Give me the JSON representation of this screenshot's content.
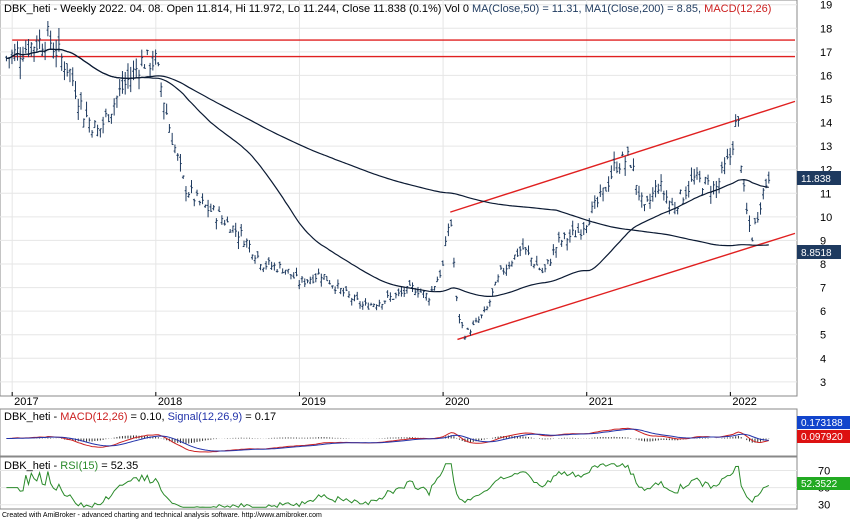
{
  "header": {
    "main": {
      "part1": "DBK_heti - Weekly 2022. 04. 08. Open 11.814, Hi 11.972, Lo 11.244, Close 11.838 (0.1%) Vol 0 ",
      "part2": "MA(Close,50) = 11.31, MA1(Close,200) = 8.85, ",
      "part3": "MACD(12,26)"
    },
    "macd": {
      "part1": "DBK_heti - ",
      "part2": "MACD(12,26)",
      "part3": " = 0.10, ",
      "part4": "Signal(12,26,9)",
      "part5": " = 0.17"
    },
    "rsi": {
      "part1": "DBK_heti - ",
      "part2": "RSI(15)",
      "part3": " = 52.35"
    }
  },
  "footer": "Created with AmiBroker - advanced charting and technical analysis software. http://www.amibroker.com",
  "badges": {
    "close": "11.838",
    "ma200": "8.8518",
    "macd_signal": "0.173188",
    "macd_value": "0.097920",
    "rsi": "52.3522"
  },
  "colors": {
    "price": "#1e3a5f",
    "ma": "#0b1a33",
    "trendline": "#e02020",
    "macd_line": "#cc2020",
    "signal_line": "#2233aa",
    "rsi_line": "#2a8a2a",
    "badge_dark": "#1e3a5f",
    "badge_red": "#dd1111",
    "badge_blue": "#1144cc",
    "badge_green": "#22aa22"
  },
  "chart_data": [
    {
      "type": "line",
      "name": "price-panel",
      "x_labels": [
        "2017",
        "2018",
        "2019",
        "2020",
        "2021",
        "2022"
      ],
      "ylim": [
        2.4,
        19.2
      ],
      "y_ticks": [
        3,
        4,
        5,
        6,
        7,
        8,
        9,
        10,
        11,
        12,
        13,
        14,
        15,
        16,
        17,
        18,
        19
      ],
      "grid": true,
      "series": [
        {
          "name": "DBK_heti",
          "style": "ohlc",
          "x": [
            2016.95,
            2017.1,
            2017.25,
            2017.4,
            2017.5,
            2017.6,
            2017.75,
            2017.9,
            2018.0,
            2018.1,
            2018.2,
            2018.3,
            2018.45,
            2018.6,
            2018.75,
            2018.9,
            2019.0,
            2019.15,
            2019.3,
            2019.45,
            2019.6,
            2019.7,
            2019.8,
            2019.9,
            2020.0,
            2020.05,
            2020.1,
            2020.15,
            2020.22,
            2020.3,
            2020.4,
            2020.55,
            2020.7,
            2020.8,
            2020.95,
            2021.1,
            2021.2,
            2021.3,
            2021.4,
            2021.5,
            2021.6,
            2021.75,
            2021.9,
            2022.0,
            2022.05,
            2022.1,
            2022.15,
            2022.22,
            2022.27
          ],
          "close": [
            16.7,
            17.2,
            17.6,
            16.2,
            14.4,
            13.6,
            15.3,
            16.6,
            16.6,
            13.7,
            11.3,
            10.6,
            10.0,
            9.2,
            8.0,
            7.8,
            7.2,
            7.6,
            6.8,
            6.2,
            6.5,
            6.7,
            7.0,
            6.6,
            7.9,
            10.2,
            6.0,
            5.0,
            5.4,
            6.0,
            7.6,
            8.7,
            7.6,
            8.9,
            9.4,
            10.8,
            12.2,
            12.5,
            10.2,
            11.4,
            10.4,
            11.6,
            11.2,
            12.6,
            14.3,
            10.6,
            9.1,
            10.9,
            11.84
          ]
        },
        {
          "name": "MA(Close,50)",
          "value": 11.31
        },
        {
          "name": "MA1(Close,200)",
          "value": 8.85
        }
      ],
      "trendlines": [
        {
          "from": [
            2017.0,
            17.5
          ],
          "to": [
            2022.45,
            17.5
          ]
        },
        {
          "from": [
            2017.0,
            16.8
          ],
          "to": [
            2022.45,
            16.8
          ]
        },
        {
          "from": [
            2020.05,
            10.2
          ],
          "to": [
            2022.45,
            14.9
          ]
        },
        {
          "from": [
            2020.1,
            4.8
          ],
          "to": [
            2022.45,
            9.3
          ]
        }
      ]
    },
    {
      "type": "line",
      "name": "macd-panel",
      "series": [
        {
          "name": "MACD(12,26)",
          "value": 0.1
        },
        {
          "name": "Signal(12,26,9)",
          "value": 0.17
        }
      ]
    },
    {
      "type": "line",
      "name": "rsi-panel",
      "y_ticks": [
        30,
        50,
        70
      ],
      "series": [
        {
          "name": "RSI(15)",
          "value": 52.35
        }
      ]
    }
  ]
}
